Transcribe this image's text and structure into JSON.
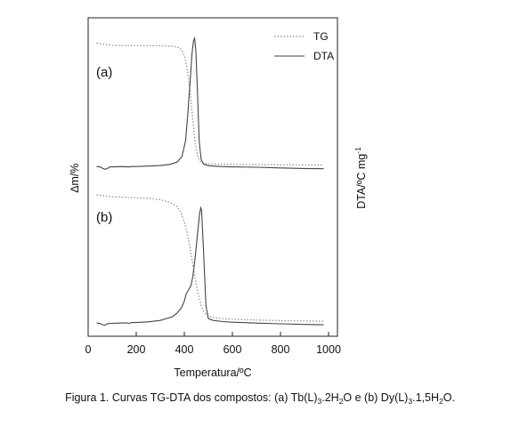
{
  "chart_data": {
    "type": "line",
    "xlabel": "Temperatura/ºC",
    "ylabel_left": "∆m/%",
    "ylabel_right": "DTA/ºC mg",
    "ylabel_right_sup": "-1",
    "xlim": [
      0,
      1000
    ],
    "xticks": [
      0,
      200,
      400,
      600,
      800,
      1000
    ],
    "legend": {
      "placement": "top-right",
      "entries": [
        "TG",
        "DTA"
      ]
    },
    "grid": false,
    "panels": [
      {
        "label": "(a)",
        "series": [
          {
            "name": "TG",
            "style": "dotted",
            "x": [
              35,
              50,
              70,
              100,
              150,
              200,
              250,
              300,
              330,
              350,
              370,
              385,
              395,
              405,
              415,
              425,
              435,
              445,
              455,
              465,
              480,
              500,
              550,
              600,
              700,
              800,
              900,
              980
            ],
            "y": [
              99.5,
              99.2,
              98.6,
              97.9,
              97.7,
              97.6,
              97.6,
              97.5,
              97.4,
              97.2,
              96.5,
              95,
              92,
              86,
              74,
              58,
              38,
              18,
              8,
              3.5,
              1.5,
              1.2,
              1.0,
              0.9,
              0.7,
              0.5,
              0.4,
              0.3
            ]
          },
          {
            "name": "DTA",
            "style": "solid",
            "x": [
              35,
              50,
              60,
              70,
              80,
              90,
              100,
              120,
              150,
              170,
              180,
              200,
              250,
              300,
              340,
              370,
              390,
              405,
              415,
              425,
              432,
              438,
              443,
              448,
              455,
              462,
              470,
              480,
              500,
              550,
              600,
              700,
              800,
              900,
              980
            ],
            "y": [
              0.5,
              0.3,
              -0.8,
              -1.5,
              -0.9,
              0.2,
              0.3,
              0.4,
              0.5,
              0.2,
              0.6,
              0.6,
              0.9,
              1.3,
              2.2,
              4,
              8,
              20,
              42,
              68,
              86,
              96,
              98,
              88,
              55,
              20,
              6,
              2.5,
              1.2,
              0.6,
              0.3,
              0,
              -0.5,
              -0.9,
              -1.1
            ]
          }
        ]
      },
      {
        "label": "(b)",
        "series": [
          {
            "name": "TG",
            "style": "dotted",
            "x": [
              35,
              50,
              70,
              100,
              150,
              200,
              250,
              300,
              330,
              350,
              370,
              385,
              400,
              410,
              420,
              430,
              440,
              450,
              460,
              470,
              480,
              490,
              500,
              520,
              550,
              600,
              700,
              800,
              900,
              980
            ],
            "y": [
              99,
              99,
              98.5,
              97.8,
              97.4,
              97,
              96.5,
              95.5,
              94,
              92.5,
              90,
              86,
              78,
              71,
              62,
              51,
              40,
              29,
              20,
              13,
              8.5,
              6,
              4.5,
              3.5,
              2.8,
              2.2,
              1.5,
              1.1,
              0.8,
              0.6
            ]
          },
          {
            "name": "DTA",
            "style": "solid",
            "x": [
              35,
              50,
              60,
              70,
              80,
              90,
              100,
              130,
              160,
              170,
              180,
              200,
              250,
              300,
              350,
              370,
              390,
              400,
              408,
              414,
              420,
              428,
              436,
              445,
              455,
              463,
              468,
              472,
              480,
              490,
              500,
              520,
              560,
              600,
              700,
              800,
              900,
              980
            ],
            "y": [
              1,
              0.5,
              -0.5,
              -1,
              0.3,
              0.5,
              0.6,
              0.8,
              1,
              0.4,
              1.3,
              1.2,
              1.8,
              3,
              6,
              9,
              14,
              19,
              25,
              27,
              29,
              32,
              40,
              55,
              75,
              90,
              96,
              94,
              60,
              15,
              4.5,
              3,
              2,
              1.5,
              0.8,
              0.2,
              -0.3,
              -0.6
            ]
          }
        ]
      }
    ]
  },
  "caption": {
    "t1": "Figura 1. Curvas TG-DTA dos compostos: (a) Tb(L)",
    "s1": "3",
    "t2": ".2H",
    "s2": "2",
    "t3": "O e (b) Dy(L)",
    "s3": "3",
    "t4": ".1,5H",
    "s4": "2",
    "t5": "O."
  }
}
